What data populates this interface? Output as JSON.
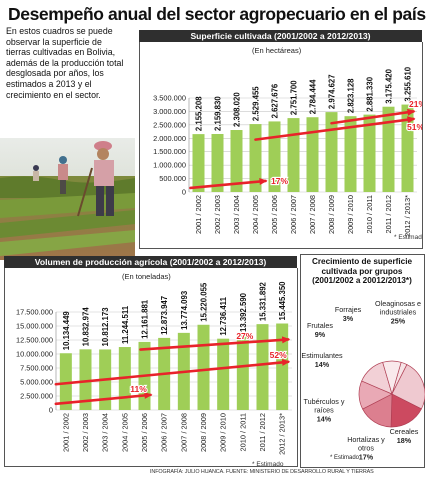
{
  "header": {
    "title": "Desempeño anual del sector agropecuario en el país",
    "intro": "En estos cuadros se puede observar la superficie de tierras cultivadas en Bolivia, además de la producción total desglosada por años, los estimados a 2013 y el crecimiento en el sector."
  },
  "footer": {
    "credit": "INFOGRAFÍA: JULIO HUANCA. FUENTE: MINISTERIO DE DESARROLLO RURAL Y TIERRAS"
  },
  "colors": {
    "bar_green": "#9fce57",
    "arrow_red": "#e8232a",
    "panel_header": "#2f2f2f"
  },
  "chart_data": [
    {
      "type": "bar",
      "title": "Superficie cultivada (2001/2002 a 2012/2013)",
      "unit_label": "(En hectáreas)",
      "categories": [
        "2001 / 2002",
        "2002 / 2003",
        "2003 / 2004",
        "2004 / 2005",
        "2005 / 2006",
        "2006 / 2007",
        "2007 / 2008",
        "2008 / 2009",
        "2009 / 2010",
        "2010 / 2011",
        "2011 / 2012",
        "2012 / 2013*"
      ],
      "values": [
        2155208,
        2159830,
        2308020,
        2529455,
        2627676,
        2751700,
        2784444,
        2974627,
        2823128,
        2881330,
        3175420,
        3255610
      ],
      "value_labels": [
        "2.155.208",
        "2.159.830",
        "2.308.020",
        "2.529.455",
        "2.627.676",
        "2.751.700",
        "2.784.444",
        "2.974.627",
        "2.823.128",
        "2.881.330",
        "3.175.420",
        "3.255.610"
      ],
      "y_ticks": [
        "0",
        "500.000",
        "1.000.000",
        "1.500.000",
        "2.000.000",
        "2.500.000",
        "3.000.000",
        "3.500.000"
      ],
      "ylim": [
        0,
        3500000
      ],
      "grid": true,
      "annotations": [
        "17%",
        "21%",
        "51%"
      ],
      "footnote": "* Estimado"
    },
    {
      "type": "bar",
      "title": "Volumen de producción agrícola (2001/2002 a 2012/2013)",
      "unit_label": "(En toneladas)",
      "categories": [
        "2001 / 2002",
        "2002 / 2003",
        "2003 / 2004",
        "2004 / 2005",
        "2005 / 2006",
        "2006 / 2007",
        "2007 / 2008",
        "2008 / 2009",
        "2009 / 2010",
        "2010 / 2011",
        "2011 / 2012",
        "2012 / 2013*"
      ],
      "values": [
        10134449,
        10832974,
        10812173,
        11244511,
        12161881,
        12873947,
        13774093,
        15220055,
        12736411,
        13392590,
        15331892,
        15445350
      ],
      "value_labels": [
        "10.134.449",
        "10.832.974",
        "10.812.173",
        "11.244.511",
        "12.161.881",
        "12.873.947",
        "13.774.093",
        "15.220.055",
        "12.736.411",
        "13.392.590",
        "15.331.892",
        "15.445.350"
      ],
      "y_ticks": [
        "0",
        "2.500.000",
        "5.000.000",
        "7.500.000",
        "10.000.000",
        "12.500.000",
        "15.000.000",
        "17.500.000"
      ],
      "ylim": [
        0,
        17500000
      ],
      "grid": true,
      "annotations": [
        "11%",
        "27%",
        "52%"
      ],
      "footnote": "* Estimado"
    },
    {
      "type": "pie",
      "title": "Crecimiento de superficie cultivada por grupos (2001/2002 a 20012/2013*)",
      "slices": [
        {
          "label": "Forrajes",
          "value": 3,
          "display": "3%"
        },
        {
          "label": "Oleaginosas e industriales",
          "value": 25,
          "display": "25%"
        },
        {
          "label": "Cereales",
          "value": 18,
          "display": "18%"
        },
        {
          "label": "Hortalizas y otros",
          "value": 17,
          "display": "17%"
        },
        {
          "label": "Tubérculos y raíces",
          "value": 14,
          "display": "14%"
        },
        {
          "label": "Estimulantes",
          "value": 14,
          "display": "14%"
        },
        {
          "label": "Frutales",
          "value": 9,
          "display": "9%"
        }
      ],
      "colors": [
        "#f6e3e6",
        "#efc9d0",
        "#cc4a60",
        "#dc7f8f",
        "#e9a9b5",
        "#f2d0d6",
        "#f9e9ec"
      ],
      "footnote": "* Estimado"
    }
  ]
}
